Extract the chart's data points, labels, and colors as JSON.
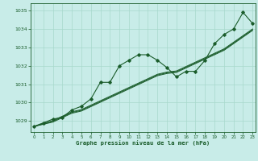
{
  "title": "Graphe pression niveau de la mer (hPa)",
  "background_color": "#c8ece8",
  "grid_color": "#a8d8cc",
  "line_color": "#1a5c2a",
  "x_ticks": [
    0,
    1,
    2,
    3,
    4,
    5,
    6,
    7,
    8,
    9,
    10,
    11,
    12,
    13,
    14,
    15,
    16,
    17,
    18,
    19,
    20,
    21,
    22,
    23
  ],
  "ylim": [
    1028.4,
    1035.4
  ],
  "yticks": [
    1029,
    1030,
    1031,
    1032,
    1033,
    1034,
    1035
  ],
  "series1": [
    1028.7,
    1028.9,
    1029.1,
    1029.2,
    1029.6,
    1029.8,
    1030.2,
    1031.1,
    1031.1,
    1032.0,
    1032.3,
    1032.6,
    1032.6,
    1032.3,
    1031.9,
    1031.4,
    1031.7,
    1031.7,
    1032.3,
    1033.2,
    1033.7,
    1034.0,
    1034.9,
    1034.3
  ],
  "series2": [
    1028.7,
    1028.82,
    1028.94,
    1029.18,
    1029.42,
    1029.54,
    1029.78,
    1030.02,
    1030.26,
    1030.5,
    1030.74,
    1030.98,
    1031.22,
    1031.46,
    1031.58,
    1031.64,
    1031.88,
    1032.12,
    1032.36,
    1032.6,
    1032.84,
    1033.2,
    1033.56,
    1033.92
  ],
  "series3": [
    1028.7,
    1028.84,
    1028.98,
    1029.22,
    1029.46,
    1029.58,
    1029.82,
    1030.06,
    1030.3,
    1030.54,
    1030.78,
    1031.02,
    1031.26,
    1031.5,
    1031.62,
    1031.68,
    1031.92,
    1032.16,
    1032.4,
    1032.64,
    1032.88,
    1033.24,
    1033.6,
    1033.96
  ],
  "series4": [
    1028.7,
    1028.86,
    1029.02,
    1029.26,
    1029.5,
    1029.62,
    1029.86,
    1030.1,
    1030.34,
    1030.58,
    1030.82,
    1031.06,
    1031.3,
    1031.54,
    1031.66,
    1031.72,
    1031.96,
    1032.2,
    1032.44,
    1032.68,
    1032.92,
    1033.28,
    1033.64,
    1034.0
  ]
}
